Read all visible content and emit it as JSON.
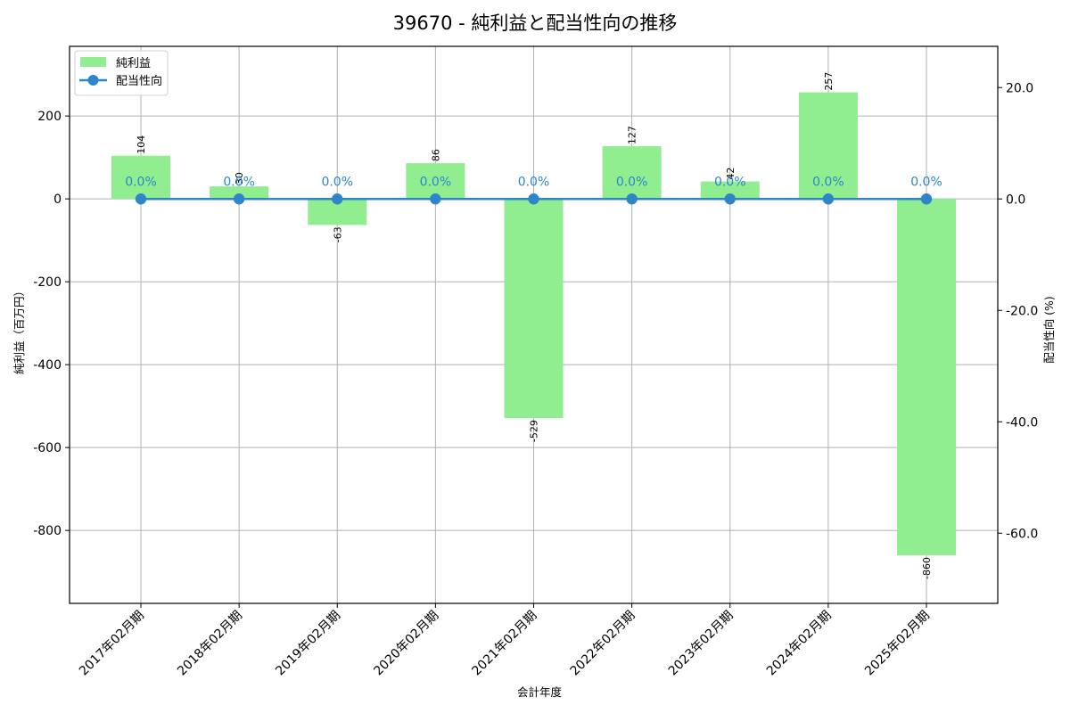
{
  "chart_data": {
    "type": "bar+line",
    "title": "39670 - 純利益と配当性向の推移",
    "xlabel": "会計年度",
    "ylabel_left": "純利益（百万円）",
    "ylabel_right": "配当性向 (%)",
    "categories": [
      "2017年02月期",
      "2018年02月期",
      "2019年02月期",
      "2020年02月期",
      "2021年02月期",
      "2022年02月期",
      "2023年02月期",
      "2024年02月期",
      "2025年02月期"
    ],
    "series": [
      {
        "name": "純利益",
        "type": "bar",
        "axis": "left",
        "color": "#90ee90",
        "values": [
          104,
          30,
          -63,
          86,
          -529,
          127,
          42,
          257,
          -860
        ],
        "labels": [
          "104",
          "30",
          "-63",
          "86",
          "-529",
          "127",
          "42",
          "257",
          "-860"
        ]
      },
      {
        "name": "配当性向",
        "type": "line",
        "axis": "right",
        "color": "#2e86c9",
        "values": [
          0.0,
          0.0,
          0.0,
          0.0,
          0.0,
          0.0,
          0.0,
          0.0,
          0.0
        ],
        "labels": [
          "0.0%",
          "0.0%",
          "0.0%",
          "0.0%",
          "0.0%",
          "0.0%",
          "0.0%",
          "0.0%",
          "0.0%"
        ]
      }
    ],
    "ylim_left": [
      -976,
      368
    ],
    "yticks_left": [
      200,
      0,
      -200,
      -400,
      -600,
      -800
    ],
    "ytick_labels_left": [
      "200",
      "0",
      "-200",
      "-400",
      "-600",
      "-800"
    ],
    "ylim_right": [
      -72.6,
      27.4
    ],
    "yticks_right": [
      20,
      0,
      -20,
      -40,
      -60
    ],
    "ytick_labels_right": [
      "20.0",
      "0.0",
      "-20.0",
      "-40.0",
      "-60.0"
    ],
    "grid": true,
    "legend_position": "upper left"
  }
}
